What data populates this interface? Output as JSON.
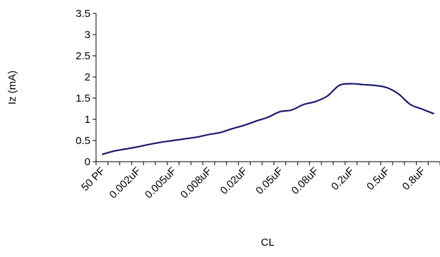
{
  "chart_data": {
    "type": "line",
    "title": "",
    "xlabel": "CL",
    "ylabel": "Iz (mA)",
    "ylim": [
      0,
      3.5
    ],
    "yticks": [
      "0",
      "0.5",
      "1",
      "1.5",
      "2",
      "2.5",
      "3",
      "3.5"
    ],
    "x_tick_labels": [
      "50 PF",
      "0.002uF",
      "0.005uF",
      "0.008uF",
      "0.02uF",
      "0.05uF",
      "0.08uF",
      "0.2uF",
      "0.5uF",
      "0.8uF"
    ],
    "grid": false,
    "legend": "none",
    "series": [
      {
        "color": "#1a1a6e",
        "values": [
          0.17,
          0.25,
          0.3,
          0.35,
          0.41,
          0.46,
          0.5,
          0.54,
          0.58,
          0.64,
          0.69,
          0.78,
          0.86,
          0.96,
          1.05,
          1.18,
          1.22,
          1.35,
          1.42,
          1.55,
          1.8,
          1.84,
          1.82,
          1.8,
          1.75,
          1.6,
          1.35,
          1.24,
          1.13
        ]
      }
    ]
  }
}
